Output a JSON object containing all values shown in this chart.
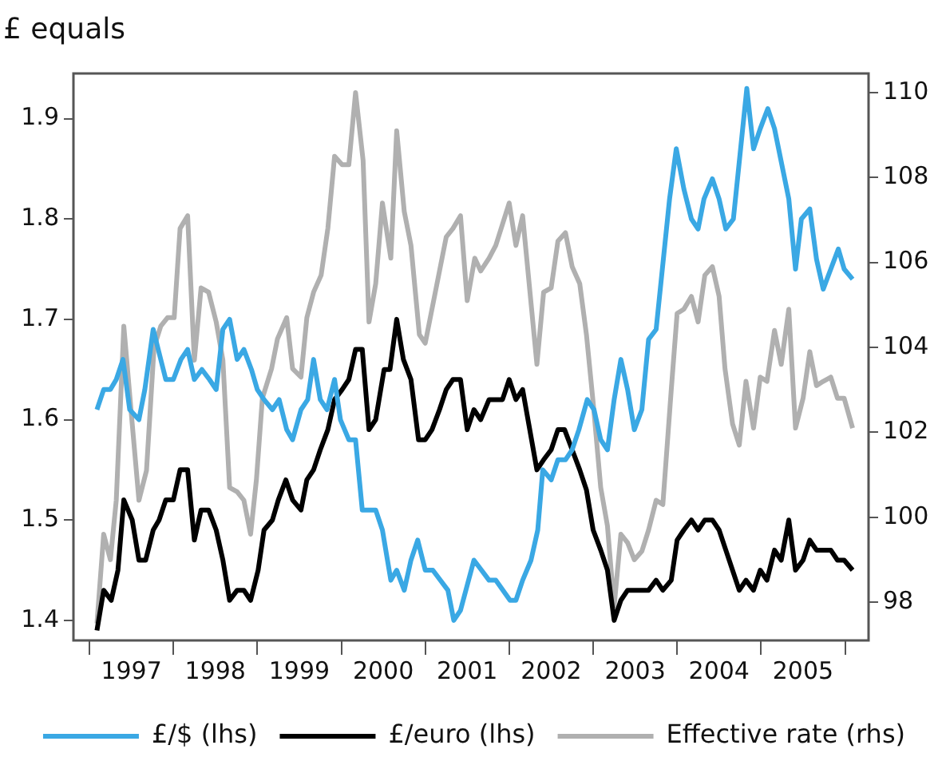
{
  "chart_data": {
    "type": "line",
    "ylabel": "£ equals",
    "legend": "bottom",
    "xlim": [
      1996.81,
      2006.28
    ],
    "xticks": [
      {
        "value": 1997,
        "label": null
      },
      {
        "value": 1997.5,
        "label": "1997"
      },
      {
        "value": 1998,
        "label": null
      },
      {
        "value": 1998.5,
        "label": "1998"
      },
      {
        "value": 1999,
        "label": null
      },
      {
        "value": 1999.5,
        "label": "1999"
      },
      {
        "value": 2000,
        "label": null
      },
      {
        "value": 2000.5,
        "label": "2000"
      },
      {
        "value": 2001,
        "label": null
      },
      {
        "value": 2001.5,
        "label": "2001"
      },
      {
        "value": 2002,
        "label": null
      },
      {
        "value": 2002.5,
        "label": "2002"
      },
      {
        "value": 2003,
        "label": null
      },
      {
        "value": 2003.5,
        "label": "2003"
      },
      {
        "value": 2004,
        "label": null
      },
      {
        "value": 2004.5,
        "label": "2004"
      },
      {
        "value": 2005,
        "label": null
      },
      {
        "value": 2005.5,
        "label": "2005"
      },
      {
        "value": 2006,
        "label": null
      }
    ],
    "ylim": [
      1.38,
      1.945
    ],
    "yticks": [
      1.4,
      1.5,
      1.6,
      1.7,
      1.8,
      1.9
    ],
    "y2lim": [
      97.1,
      110.45
    ],
    "y2ticks": [
      98,
      100,
      102,
      104,
      106,
      108,
      110
    ],
    "series": [
      {
        "name": "£/$ (lhs)",
        "color": "#3aa8e4",
        "x": [
          1997.09,
          1997.17,
          1997.25,
          1997.32,
          1997.4,
          1997.48,
          1997.59,
          1997.66,
          1997.76,
          1997.85,
          1997.91,
          1998.0,
          1998.09,
          1998.17,
          1998.25,
          1998.34,
          1998.43,
          1998.51,
          1998.59,
          1998.67,
          1998.76,
          1998.84,
          1998.93,
          1999.0,
          1999.08,
          1999.18,
          1999.26,
          1999.35,
          1999.42,
          1999.52,
          1999.6,
          1999.67,
          1999.75,
          1999.83,
          1999.92,
          1999.99,
          2000.09,
          2000.17,
          2000.25,
          2000.41,
          2000.49,
          2000.59,
          2000.66,
          2000.75,
          2000.83,
          2000.91,
          2001.0,
          2001.09,
          2001.27,
          2001.34,
          2001.42,
          2001.58,
          2001.67,
          2001.76,
          2001.84,
          2002.01,
          2002.08,
          2002.16,
          2002.26,
          2002.34,
          2002.4,
          2002.5,
          2002.58,
          2002.67,
          2002.75,
          2002.83,
          2002.93,
          2003.01,
          2003.09,
          2003.17,
          2003.25,
          2003.33,
          2003.41,
          2003.49,
          2003.58,
          2003.66,
          2003.75,
          2003.91,
          2003.99,
          2004.08,
          2004.17,
          2004.25,
          2004.32,
          2004.42,
          2004.5,
          2004.58,
          2004.67,
          2004.83,
          2004.91,
          2004.99,
          2005.08,
          2005.16,
          2005.33,
          2005.41,
          2005.48,
          2005.58,
          2005.66,
          2005.74,
          2005.83,
          2005.92,
          2005.99,
          2006.09
        ],
        "values": [
          1.61,
          1.63,
          1.63,
          1.64,
          1.66,
          1.61,
          1.6,
          1.63,
          1.69,
          1.66,
          1.64,
          1.64,
          1.66,
          1.67,
          1.64,
          1.65,
          1.64,
          1.63,
          1.69,
          1.7,
          1.66,
          1.67,
          1.65,
          1.63,
          1.62,
          1.61,
          1.62,
          1.59,
          1.58,
          1.61,
          1.62,
          1.66,
          1.62,
          1.61,
          1.64,
          1.6,
          1.58,
          1.58,
          1.51,
          1.51,
          1.49,
          1.44,
          1.45,
          1.43,
          1.46,
          1.48,
          1.45,
          1.45,
          1.43,
          1.4,
          1.41,
          1.46,
          1.45,
          1.44,
          1.44,
          1.42,
          1.42,
          1.44,
          1.46,
          1.49,
          1.55,
          1.54,
          1.56,
          1.56,
          1.57,
          1.59,
          1.62,
          1.61,
          1.58,
          1.57,
          1.62,
          1.66,
          1.63,
          1.59,
          1.61,
          1.68,
          1.69,
          1.82,
          1.87,
          1.83,
          1.8,
          1.79,
          1.82,
          1.84,
          1.82,
          1.79,
          1.8,
          1.93,
          1.87,
          1.89,
          1.91,
          1.89,
          1.82,
          1.75,
          1.8,
          1.81,
          1.76,
          1.73,
          1.75,
          1.77,
          1.75,
          1.74
        ]
      },
      {
        "name": "£/euro (lhs)",
        "color": "#000000",
        "x": [
          1997.09,
          1997.17,
          1997.26,
          1997.34,
          1997.41,
          1997.51,
          1997.59,
          1997.67,
          1997.76,
          1997.83,
          1997.91,
          1998.0,
          1998.08,
          1998.17,
          1998.25,
          1998.33,
          1998.42,
          1998.51,
          1998.59,
          1998.67,
          1998.76,
          1998.84,
          1998.92,
          1999.01,
          1999.08,
          1999.18,
          1999.25,
          1999.34,
          1999.42,
          1999.52,
          1999.59,
          1999.67,
          1999.75,
          1999.84,
          1999.92,
          2000.01,
          2000.09,
          2000.17,
          2000.25,
          2000.33,
          2000.41,
          2000.51,
          2000.58,
          2000.66,
          2000.74,
          2000.83,
          2000.92,
          2001.0,
          2001.08,
          2001.17,
          2001.25,
          2001.33,
          2001.42,
          2001.5,
          2001.58,
          2001.66,
          2001.76,
          2001.84,
          2001.92,
          2002.0,
          2002.08,
          2002.16,
          2002.33,
          2002.41,
          2002.5,
          2002.58,
          2002.66,
          2002.75,
          2002.84,
          2002.92,
          2003.0,
          2003.09,
          2003.17,
          2003.25,
          2003.33,
          2003.41,
          2003.49,
          2003.58,
          2003.66,
          2003.75,
          2003.83,
          2003.93,
          2004.0,
          2004.08,
          2004.17,
          2004.25,
          2004.33,
          2004.42,
          2004.5,
          2004.58,
          2004.66,
          2004.74,
          2004.82,
          2004.91,
          2004.99,
          2005.07,
          2005.16,
          2005.24,
          2005.33,
          2005.41,
          2005.5,
          2005.58,
          2005.66,
          2005.74,
          2005.83,
          2005.91,
          2005.99,
          2006.09
        ],
        "values": [
          1.39,
          1.43,
          1.42,
          1.45,
          1.52,
          1.5,
          1.46,
          1.46,
          1.49,
          1.5,
          1.52,
          1.52,
          1.55,
          1.55,
          1.48,
          1.51,
          1.51,
          1.49,
          1.46,
          1.42,
          1.43,
          1.43,
          1.42,
          1.45,
          1.49,
          1.5,
          1.52,
          1.54,
          1.52,
          1.51,
          1.54,
          1.55,
          1.57,
          1.59,
          1.62,
          1.63,
          1.64,
          1.67,
          1.67,
          1.59,
          1.6,
          1.65,
          1.65,
          1.7,
          1.66,
          1.64,
          1.58,
          1.58,
          1.59,
          1.61,
          1.63,
          1.64,
          1.64,
          1.59,
          1.61,
          1.6,
          1.62,
          1.62,
          1.62,
          1.64,
          1.62,
          1.63,
          1.55,
          1.56,
          1.57,
          1.59,
          1.59,
          1.57,
          1.55,
          1.53,
          1.49,
          1.47,
          1.45,
          1.4,
          1.42,
          1.43,
          1.43,
          1.43,
          1.43,
          1.44,
          1.43,
          1.44,
          1.48,
          1.49,
          1.5,
          1.49,
          1.5,
          1.5,
          1.49,
          1.47,
          1.45,
          1.43,
          1.44,
          1.43,
          1.45,
          1.44,
          1.47,
          1.46,
          1.5,
          1.45,
          1.46,
          1.48,
          1.47,
          1.47,
          1.47,
          1.46,
          1.46,
          1.45
        ]
      },
      {
        "name": "Effective rate (rhs)",
        "color": "#b0b0b0",
        "axis": "y2",
        "x": [
          1997.09,
          1997.17,
          1997.25,
          1997.32,
          1997.41,
          1997.51,
          1997.59,
          1997.68,
          1997.77,
          1997.85,
          1997.93,
          1998.01,
          1998.08,
          1998.17,
          1998.25,
          1998.33,
          1998.42,
          1998.51,
          1998.59,
          1998.67,
          1998.76,
          1998.84,
          1998.92,
          1998.99,
          1999.06,
          1999.17,
          1999.24,
          1999.35,
          1999.42,
          1999.52,
          1999.59,
          1999.67,
          1999.76,
          1999.84,
          1999.92,
          2000.01,
          2000.09,
          2000.17,
          2000.26,
          2000.33,
          2000.41,
          2000.49,
          2000.59,
          2000.66,
          2000.75,
          2000.83,
          2000.93,
          2001.0,
          2001.25,
          2001.33,
          2001.42,
          2001.5,
          2001.59,
          2001.66,
          2001.76,
          2001.84,
          2001.92,
          2002.0,
          2002.08,
          2002.16,
          2002.33,
          2002.41,
          2002.5,
          2002.58,
          2002.67,
          2002.75,
          2002.84,
          2002.92,
          2003.0,
          2003.09,
          2003.17,
          2003.25,
          2003.33,
          2003.41,
          2003.49,
          2003.58,
          2003.66,
          2003.75,
          2003.83,
          2003.93,
          2004.0,
          2004.08,
          2004.17,
          2004.25,
          2004.33,
          2004.42,
          2004.5,
          2004.57,
          2004.66,
          2004.74,
          2004.82,
          2004.91,
          2004.99,
          2005.07,
          2005.16,
          2005.24,
          2005.33,
          2005.41,
          2005.5,
          2005.58,
          2005.66,
          2005.74,
          2005.83,
          2005.91,
          2005.99,
          2006.09
        ],
        "values": [
          97.5,
          99.6,
          99.0,
          100.4,
          104.5,
          102.2,
          100.4,
          101.1,
          104.0,
          104.5,
          104.7,
          104.7,
          106.8,
          107.1,
          103.7,
          105.4,
          105.3,
          104.6,
          103.7,
          100.7,
          100.6,
          100.4,
          99.6,
          100.9,
          102.8,
          103.5,
          104.2,
          104.7,
          103.5,
          103.3,
          104.7,
          105.3,
          105.7,
          106.8,
          108.5,
          108.3,
          108.3,
          110.0,
          108.4,
          104.6,
          105.5,
          107.4,
          106.1,
          109.1,
          107.2,
          106.4,
          104.3,
          104.1,
          106.6,
          106.8,
          107.1,
          105.1,
          106.1,
          105.8,
          106.1,
          106.4,
          106.9,
          107.4,
          106.4,
          107.1,
          103.6,
          105.3,
          105.4,
          106.5,
          106.7,
          105.9,
          105.5,
          104.3,
          102.7,
          100.7,
          99.8,
          97.9,
          99.6,
          99.4,
          99.0,
          99.2,
          99.7,
          100.4,
          100.3,
          103.0,
          104.8,
          104.9,
          105.2,
          104.6,
          105.7,
          105.9,
          105.2,
          103.5,
          102.2,
          101.7,
          103.2,
          102.1,
          103.3,
          103.2,
          104.4,
          103.6,
          104.9,
          102.1,
          102.8,
          103.9,
          103.1,
          103.2,
          103.3,
          102.8,
          102.8,
          102.1
        ]
      }
    ]
  }
}
